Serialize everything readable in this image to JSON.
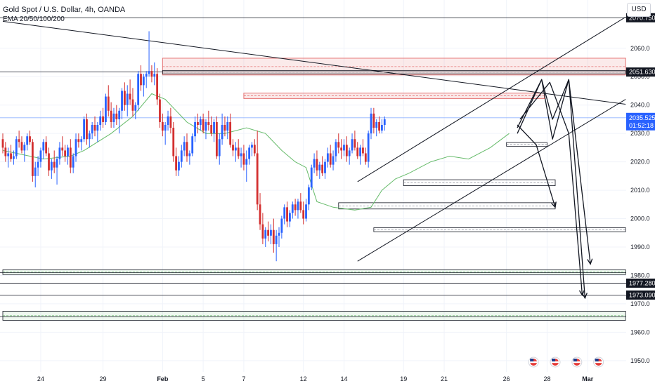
{
  "header": {
    "title": "Gold Spot / U.S. Dollar, 4h, OANDA",
    "indicator": "EMA 20/50/100/200",
    "currency_button": "USD"
  },
  "colors": {
    "up": "#2962ff",
    "down": "#d32f2f",
    "ema": "#66bb6a",
    "current_line": "#90b4ff",
    "current_box": "#2962ff",
    "level_box": "#131722",
    "zone_red": "#e57373",
    "zone_green": "#66bb6a"
  },
  "chart_data": {
    "type": "candlestick",
    "title": "Gold Spot / U.S. Dollar, 4h, OANDA",
    "y_range": [
      1946,
      2077
    ],
    "y_ticks": [
      1950,
      1960,
      1970,
      1980,
      1990,
      2000,
      2010,
      2020,
      2030,
      2040,
      2050,
      2060
    ],
    "x_ticks": [
      {
        "label": "24",
        "bar": 14
      },
      {
        "label": "29",
        "bar": 37
      },
      {
        "label": "Feb",
        "bar": 59
      },
      {
        "label": "5",
        "bar": 74
      },
      {
        "label": "7",
        "bar": 89
      },
      {
        "label": "12",
        "bar": 111
      },
      {
        "label": "14",
        "bar": 126
      },
      {
        "label": "19",
        "bar": 148
      },
      {
        "label": "21",
        "bar": 163
      },
      {
        "label": "26",
        "bar": 186
      },
      {
        "label": "28",
        "bar": 201
      },
      {
        "label": "Mar",
        "bar": 216
      }
    ],
    "candles": [
      [
        2028,
        2030,
        2023,
        2025
      ],
      [
        2025,
        2027,
        2020,
        2022
      ],
      [
        2022,
        2025,
        2018,
        2023
      ],
      [
        2023,
        2026,
        2020,
        2021
      ],
      [
        2021,
        2024,
        2019,
        2022
      ],
      [
        2022,
        2029,
        2021,
        2028
      ],
      [
        2028,
        2031,
        2025,
        2027
      ],
      [
        2027,
        2029,
        2023,
        2024
      ],
      [
        2024,
        2027,
        2020,
        2026
      ],
      [
        2026,
        2030,
        2024,
        2029
      ],
      [
        2029,
        2031,
        2026,
        2027
      ],
      [
        2027,
        2028,
        2013,
        2015
      ],
      [
        2015,
        2020,
        2011,
        2018
      ],
      [
        2018,
        2022,
        2015,
        2020
      ],
      [
        2020,
        2025,
        2018,
        2024
      ],
      [
        2024,
        2028,
        2021,
        2027
      ],
      [
        2027,
        2029,
        2022,
        2023
      ],
      [
        2023,
        2025,
        2015,
        2017
      ],
      [
        2017,
        2021,
        2014,
        2020
      ],
      [
        2020,
        2024,
        2016,
        2018
      ],
      [
        2018,
        2022,
        2012,
        2021
      ],
      [
        2021,
        2027,
        2019,
        2025
      ],
      [
        2025,
        2029,
        2022,
        2024
      ],
      [
        2024,
        2026,
        2020,
        2022
      ],
      [
        2022,
        2026,
        2019,
        2025
      ],
      [
        2025,
        2028,
        2016,
        2018
      ],
      [
        2018,
        2023,
        2016,
        2022
      ],
      [
        2022,
        2030,
        2020,
        2028
      ],
      [
        2028,
        2030,
        2025,
        2027
      ],
      [
        2027,
        2029,
        2024,
        2028
      ],
      [
        2028,
        2036,
        2027,
        2035
      ],
      [
        2035,
        2037,
        2026,
        2028
      ],
      [
        2028,
        2031,
        2025,
        2030
      ],
      [
        2030,
        2034,
        2028,
        2033
      ],
      [
        2033,
        2036,
        2029,
        2031
      ],
      [
        2031,
        2034,
        2027,
        2033
      ],
      [
        2033,
        2038,
        2031,
        2036
      ],
      [
        2036,
        2039,
        2032,
        2034
      ],
      [
        2034,
        2044,
        2033,
        2043
      ],
      [
        2043,
        2047,
        2036,
        2038
      ],
      [
        2038,
        2041,
        2032,
        2034
      ],
      [
        2034,
        2039,
        2032,
        2037
      ],
      [
        2037,
        2040,
        2033,
        2035
      ],
      [
        2035,
        2039,
        2030,
        2038
      ],
      [
        2038,
        2046,
        2035,
        2045
      ],
      [
        2045,
        2048,
        2038,
        2040
      ],
      [
        2040,
        2047,
        2036,
        2044
      ],
      [
        2044,
        2049,
        2040,
        2042
      ],
      [
        2042,
        2046,
        2036,
        2038
      ],
      [
        2038,
        2041,
        2035,
        2040
      ],
      [
        2040,
        2052,
        2038,
        2051
      ],
      [
        2051,
        2054,
        2045,
        2047
      ],
      [
        2047,
        2051,
        2043,
        2050
      ],
      [
        2050,
        2052,
        2046,
        2051
      ],
      [
        2051,
        2066,
        2050,
        2052
      ],
      [
        2052,
        2054,
        2048,
        2050
      ],
      [
        2050,
        2055,
        2047,
        2051
      ],
      [
        2051,
        2053,
        2040,
        2042
      ],
      [
        2042,
        2044,
        2032,
        2034
      ],
      [
        2034,
        2037,
        2029,
        2031
      ],
      [
        2031,
        2034,
        2026,
        2033
      ],
      [
        2033,
        2038,
        2031,
        2036
      ],
      [
        2036,
        2039,
        2030,
        2032
      ],
      [
        2032,
        2034,
        2020,
        2022
      ],
      [
        2022,
        2025,
        2015,
        2017
      ],
      [
        2017,
        2022,
        2015,
        2020
      ],
      [
        2020,
        2026,
        2018,
        2024
      ],
      [
        2024,
        2029,
        2022,
        2027
      ],
      [
        2027,
        2030,
        2020,
        2022
      ],
      [
        2022,
        2024,
        2019,
        2023
      ],
      [
        2023,
        2030,
        2022,
        2029
      ],
      [
        2029,
        2036,
        2027,
        2034
      ],
      [
        2034,
        2037,
        2030,
        2033
      ],
      [
        2033,
        2036,
        2031,
        2035
      ],
      [
        2035,
        2037,
        2030,
        2031
      ],
      [
        2031,
        2035,
        2028,
        2034
      ],
      [
        2034,
        2038,
        2031,
        2033
      ],
      [
        2033,
        2036,
        2029,
        2030
      ],
      [
        2030,
        2035,
        2027,
        2034
      ],
      [
        2034,
        2036,
        2021,
        2022
      ],
      [
        2022,
        2030,
        2019,
        2028
      ],
      [
        2028,
        2037,
        2026,
        2033
      ],
      [
        2033,
        2036,
        2029,
        2031
      ],
      [
        2031,
        2036,
        2028,
        2034
      ],
      [
        2034,
        2037,
        2025,
        2026
      ],
      [
        2026,
        2028,
        2022,
        2024
      ],
      [
        2024,
        2027,
        2020,
        2025
      ],
      [
        2025,
        2028,
        2021,
        2022
      ],
      [
        2022,
        2025,
        2018,
        2023
      ],
      [
        2023,
        2026,
        2017,
        2019
      ],
      [
        2019,
        2024,
        2013,
        2021
      ],
      [
        2021,
        2026,
        2019,
        2025
      ],
      [
        2025,
        2027,
        2022,
        2026
      ],
      [
        2026,
        2028,
        2022,
        2023
      ],
      [
        2023,
        2031,
        2003,
        2005
      ],
      [
        2005,
        2009,
        1996,
        1998
      ],
      [
        1998,
        2002,
        1991,
        1993
      ],
      [
        1993,
        1997,
        1990,
        1996
      ],
      [
        1996,
        1999,
        1992,
        1994
      ],
      [
        1994,
        1998,
        1991,
        1996
      ],
      [
        1996,
        2000,
        1988,
        1991
      ],
      [
        1991,
        1996,
        1985,
        1994
      ],
      [
        1994,
        1997,
        1990,
        1995
      ],
      [
        1995,
        2001,
        1993,
        2000
      ],
      [
        2000,
        2005,
        1998,
        2004
      ],
      [
        2004,
        2006,
        1997,
        1999
      ],
      [
        1999,
        2003,
        1997,
        2002
      ],
      [
        2002,
        2006,
        2000,
        2005
      ],
      [
        2005,
        2007,
        2001,
        2003
      ],
      [
        2003,
        2007,
        2000,
        2006
      ],
      [
        2006,
        2009,
        2002,
        2003
      ],
      [
        2003,
        2006,
        1998,
        2000
      ],
      [
        2000,
        2007,
        1999,
        2005
      ],
      [
        2005,
        2012,
        2003,
        2011
      ],
      [
        2011,
        2019,
        2010,
        2018
      ],
      [
        2018,
        2023,
        2016,
        2021
      ],
      [
        2021,
        2024,
        2015,
        2017
      ],
      [
        2017,
        2020,
        2014,
        2019
      ],
      [
        2019,
        2022,
        2015,
        2016
      ],
      [
        2016,
        2021,
        2014,
        2020
      ],
      [
        2020,
        2025,
        2018,
        2023
      ],
      [
        2023,
        2026,
        2018,
        2019
      ],
      [
        2019,
        2024,
        2017,
        2022
      ],
      [
        2022,
        2028,
        2020,
        2027
      ],
      [
        2027,
        2030,
        2023,
        2025
      ],
      [
        2025,
        2028,
        2021,
        2024
      ],
      [
        2024,
        2028,
        2022,
        2026
      ],
      [
        2026,
        2029,
        2020,
        2022
      ],
      [
        2022,
        2025,
        2019,
        2024
      ],
      [
        2024,
        2030,
        2023,
        2028
      ],
      [
        2028,
        2031,
        2024,
        2025
      ],
      [
        2025,
        2027,
        2021,
        2022
      ],
      [
        2022,
        2026,
        2019,
        2025
      ],
      [
        2025,
        2028,
        2022,
        2023
      ],
      [
        2023,
        2025,
        2019,
        2020
      ],
      [
        2020,
        2031,
        2018,
        2030
      ],
      [
        2030,
        2039,
        2028,
        2037
      ],
      [
        2037,
        2039,
        2030,
        2032
      ],
      [
        2032,
        2035,
        2029,
        2034
      ],
      [
        2034,
        2036,
        2030,
        2031
      ],
      [
        2031,
        2035,
        2030,
        2033
      ],
      [
        2033,
        2036,
        2031,
        2035
      ]
    ],
    "ema": [
      [
        0,
        2024
      ],
      [
        10,
        2022
      ],
      [
        15,
        2021
      ],
      [
        25,
        2022
      ],
      [
        30,
        2024
      ],
      [
        40,
        2030
      ],
      [
        48,
        2036
      ],
      [
        55,
        2044
      ],
      [
        60,
        2042
      ],
      [
        68,
        2034
      ],
      [
        75,
        2030
      ],
      [
        82,
        2030
      ],
      [
        90,
        2032
      ],
      [
        97,
        2030
      ],
      [
        103,
        2024
      ],
      [
        108,
        2020
      ],
      [
        112,
        2018
      ],
      [
        116,
        2006
      ],
      [
        122,
        2004
      ],
      [
        130,
        2003
      ],
      [
        136,
        2004
      ],
      [
        140,
        2010
      ],
      [
        145,
        2014
      ],
      [
        150,
        2016
      ],
      [
        158,
        2020
      ],
      [
        165,
        2022
      ],
      [
        172,
        2021
      ],
      [
        180,
        2025
      ],
      [
        187,
        2030
      ]
    ],
    "labels": {
      "level_2070": "2070.750",
      "level_2051": "2051.630",
      "current_price": "2035.525",
      "current_timer": "01:52:18",
      "level_1977": "1977.280",
      "level_1973": "1973.090"
    },
    "horizontal_levels": [
      2070.75,
      2051.63,
      1977.28,
      1973.09,
      1981,
      1965.5
    ],
    "current_price": 2035.525,
    "zones": [
      {
        "x1": 59,
        "x2": 230,
        "y1": 2050.6,
        "y2": 2056.5,
        "kind": "red"
      },
      {
        "x1": 59,
        "x2": 230,
        "y1": 2051.0,
        "y2": 2052.2,
        "kind": "box"
      },
      {
        "x1": 89,
        "x2": 200,
        "y1": 2044.2,
        "y2": 2042.3,
        "kind": "red"
      },
      {
        "x1": 186,
        "x2": 201,
        "y1": 2025.5,
        "y2": 2026.8,
        "kind": "box"
      },
      {
        "x1": 148,
        "x2": 204,
        "y1": 2011.6,
        "y2": 2013.7,
        "kind": "box"
      },
      {
        "x1": 124,
        "x2": 204,
        "y1": 2003.4,
        "y2": 2005.6,
        "kind": "box"
      },
      {
        "x1": 137,
        "x2": 230,
        "y1": 1995.4,
        "y2": 1996.8,
        "kind": "box"
      },
      {
        "x1": 0,
        "x2": 230,
        "y1": 1980.3,
        "y2": 1982.0,
        "kind": "green"
      },
      {
        "x1": 0,
        "x2": 230,
        "y1": 1964.2,
        "y2": 1967.4,
        "kind": "green"
      }
    ],
    "trend_lines": [
      {
        "x1": 0,
        "y1": 2069.5,
        "x2": 230,
        "y2": 2040.3
      },
      {
        "x1": 131,
        "y1": 2013,
        "x2": 230,
        "y2": 2071
      },
      {
        "x1": 131,
        "y1": 1985,
        "x2": 230,
        "y2": 2042
      }
    ],
    "projection_arrows": [
      [
        [
          190,
          2030
        ],
        [
          199,
          2049
        ],
        [
          203,
          2028
        ],
        [
          209,
          2049
        ],
        [
          217,
          1984
        ]
      ],
      [
        [
          190,
          2032
        ],
        [
          199,
          2049
        ],
        [
          203,
          2035
        ],
        [
          209,
          2049
        ],
        [
          215,
          1972
        ]
      ],
      [
        [
          190,
          2033
        ],
        [
          197,
          2026
        ],
        [
          204,
          2004
        ]
      ],
      [
        [
          191,
          2035
        ],
        [
          202,
          2048
        ],
        [
          209,
          2030
        ],
        [
          214,
          1973
        ]
      ]
    ],
    "events_bars": [
      196,
      204,
      212,
      220
    ]
  }
}
